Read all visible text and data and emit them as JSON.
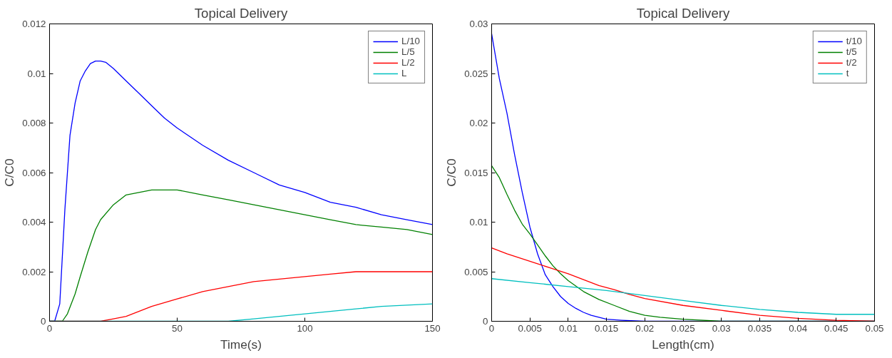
{
  "chart_data": [
    {
      "type": "line",
      "title": "Topical Delivery",
      "xlabel": "Time(s)",
      "ylabel": "C/C0",
      "xlim": [
        0,
        150
      ],
      "ylim": [
        0,
        0.012
      ],
      "xticks": [
        0,
        50,
        100,
        150
      ],
      "yticks": [
        0,
        0.002,
        0.004,
        0.006,
        0.008,
        0.01,
        0.012
      ],
      "grid": false,
      "legend": "top right",
      "series": [
        {
          "name": "L/10",
          "color": "#0000ff",
          "x": [
            0,
            2,
            4,
            6,
            8,
            10,
            12,
            14,
            16,
            18,
            20,
            22,
            25,
            30,
            35,
            40,
            45,
            50,
            60,
            70,
            80,
            90,
            100,
            110,
            120,
            130,
            140,
            150
          ],
          "values": [
            0,
            0,
            0.0007,
            0.0045,
            0.0075,
            0.0088,
            0.0097,
            0.0101,
            0.0104,
            0.0105,
            0.0105,
            0.01045,
            0.0102,
            0.0097,
            0.0092,
            0.0087,
            0.0082,
            0.0078,
            0.0071,
            0.0065,
            0.006,
            0.0055,
            0.0052,
            0.0048,
            0.0046,
            0.0043,
            0.0041,
            0.0039
          ]
        },
        {
          "name": "L/5",
          "color": "#008000",
          "x": [
            0,
            5,
            7,
            10,
            12,
            15,
            18,
            20,
            25,
            30,
            35,
            40,
            45,
            50,
            60,
            70,
            80,
            90,
            100,
            110,
            120,
            130,
            140,
            150
          ],
          "values": [
            0,
            0,
            0.0003,
            0.0011,
            0.0018,
            0.0028,
            0.0037,
            0.0041,
            0.0047,
            0.0051,
            0.0052,
            0.0053,
            0.0053,
            0.0053,
            0.0051,
            0.0049,
            0.0047,
            0.0045,
            0.0043,
            0.0041,
            0.0039,
            0.0038,
            0.0037,
            0.0035
          ]
        },
        {
          "name": "L/2",
          "color": "#ff0000",
          "x": [
            0,
            20,
            25,
            30,
            40,
            50,
            60,
            70,
            80,
            90,
            100,
            110,
            120,
            135,
            150
          ],
          "values": [
            0,
            0,
            0.0001,
            0.0002,
            0.0006,
            0.0009,
            0.0012,
            0.0014,
            0.0016,
            0.0017,
            0.0018,
            0.0019,
            0.002,
            0.002,
            0.002
          ]
        },
        {
          "name": "L",
          "color": "#00bfbf",
          "x": [
            0,
            60,
            70,
            80,
            90,
            100,
            110,
            120,
            130,
            140,
            150
          ],
          "values": [
            0,
            0,
            0,
            0.0001,
            0.0002,
            0.0003,
            0.0004,
            0.0005,
            0.0006,
            0.00065,
            0.0007
          ]
        }
      ]
    },
    {
      "type": "line",
      "title": "Topical Delivery",
      "xlabel": "Length(cm)",
      "ylabel": "C/C0",
      "xlim": [
        0,
        0.05
      ],
      "ylim": [
        0,
        0.03
      ],
      "xticks": [
        0,
        0.005,
        0.01,
        0.015,
        0.02,
        0.025,
        0.03,
        0.035,
        0.04,
        0.045,
        0.05
      ],
      "yticks": [
        0,
        0.005,
        0.01,
        0.015,
        0.02,
        0.025,
        0.03
      ],
      "grid": false,
      "legend": "top right",
      "series": [
        {
          "name": "t/10",
          "color": "#0000ff",
          "x": [
            0,
            0.001,
            0.002,
            0.003,
            0.004,
            0.005,
            0.006,
            0.007,
            0.008,
            0.009,
            0.01,
            0.011,
            0.012,
            0.013,
            0.014,
            0.015,
            0.017,
            0.02,
            0.025,
            0.05
          ],
          "values": [
            0.029,
            0.0245,
            0.021,
            0.0168,
            0.013,
            0.0095,
            0.0068,
            0.0047,
            0.0035,
            0.0025,
            0.0018,
            0.0013,
            0.0009,
            0.0006,
            0.0004,
            0.0002,
            0.0001,
            0,
            0,
            0
          ]
        },
        {
          "name": "t/5",
          "color": "#008000",
          "x": [
            0,
            0.001,
            0.002,
            0.003,
            0.004,
            0.005,
            0.006,
            0.007,
            0.008,
            0.009,
            0.01,
            0.012,
            0.014,
            0.016,
            0.018,
            0.02,
            0.022,
            0.025,
            0.03,
            0.05
          ],
          "values": [
            0.0157,
            0.0145,
            0.0128,
            0.0112,
            0.0098,
            0.0088,
            0.0077,
            0.0066,
            0.0056,
            0.0048,
            0.0041,
            0.003,
            0.0022,
            0.0016,
            0.001,
            0.0006,
            0.0004,
            0.0002,
            0,
            0
          ]
        },
        {
          "name": "t/2",
          "color": "#ff0000",
          "x": [
            0,
            0.002,
            0.004,
            0.006,
            0.008,
            0.01,
            0.012,
            0.014,
            0.016,
            0.018,
            0.02,
            0.025,
            0.03,
            0.035,
            0.04,
            0.045,
            0.05
          ],
          "values": [
            0.0074,
            0.0068,
            0.0063,
            0.0058,
            0.0053,
            0.0048,
            0.0042,
            0.0036,
            0.0032,
            0.0027,
            0.0023,
            0.0016,
            0.0011,
            0.0006,
            0.0003,
            0.0001,
            0
          ]
        },
        {
          "name": "t",
          "color": "#00bfbf",
          "x": [
            0,
            0.005,
            0.01,
            0.015,
            0.02,
            0.025,
            0.03,
            0.035,
            0.04,
            0.045,
            0.05
          ],
          "values": [
            0.0043,
            0.0039,
            0.0035,
            0.0031,
            0.0026,
            0.0021,
            0.0016,
            0.0012,
            0.0009,
            0.0007,
            0.0007
          ]
        }
      ]
    }
  ]
}
